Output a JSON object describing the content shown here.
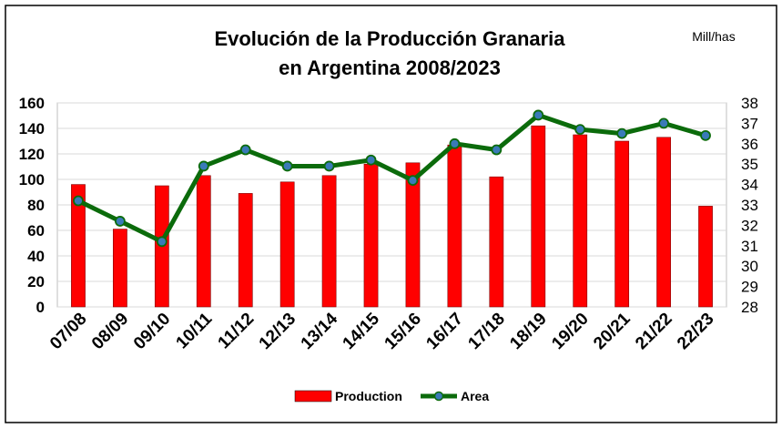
{
  "chart_data": {
    "type": "bar",
    "title_line1": "Evolución de la Producción Granaria",
    "title_line2": "en Argentina 2008/2023",
    "unit_label": "Mill/has",
    "categories": [
      "07/08",
      "08/09",
      "09/10",
      "10/11",
      "11/12",
      "12/13",
      "13/14",
      "14/15",
      "15/16",
      "16/17",
      "17/18",
      "18/19",
      "19/20",
      "20/21",
      "21/22",
      "22/23"
    ],
    "series": [
      {
        "name": "Production",
        "type": "bar",
        "axis": "left",
        "color": "#ff0000",
        "values": [
          96,
          61,
          95,
          103,
          89,
          98,
          103,
          112,
          113,
          127,
          102,
          142,
          135,
          130,
          133,
          79
        ]
      },
      {
        "name": "Area",
        "type": "line",
        "axis": "right",
        "color": "#0b6b0b",
        "marker_color": "#3a7ab8",
        "values": [
          33.2,
          32.2,
          31.2,
          34.9,
          35.7,
          34.9,
          34.9,
          35.2,
          34.2,
          36.0,
          35.7,
          37.4,
          36.7,
          36.5,
          37.0,
          36.4
        ]
      }
    ],
    "y_left": {
      "min": 0,
      "max": 160,
      "step": 20,
      "ticks": [
        "0",
        "20",
        "40",
        "60",
        "80",
        "100",
        "120",
        "140",
        "160"
      ]
    },
    "y_right": {
      "min": 28,
      "max": 38,
      "step": 1,
      "ticks": [
        "28",
        "29",
        "30",
        "31",
        "32",
        "33",
        "34",
        "35",
        "36",
        "37",
        "38"
      ]
    },
    "grid": true,
    "legend_position": "bottom"
  }
}
